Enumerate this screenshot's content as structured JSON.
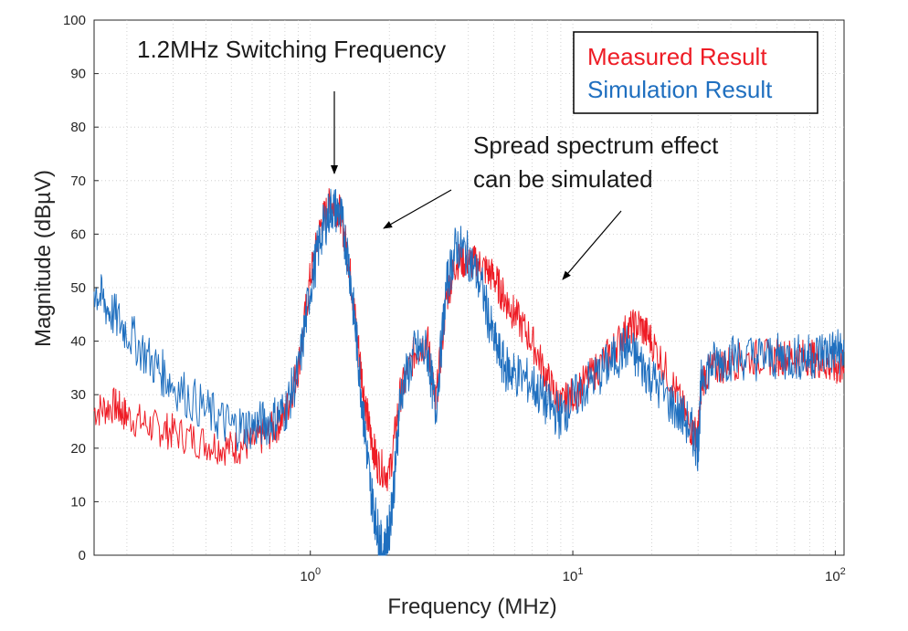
{
  "chart_data": {
    "type": "line",
    "title": "",
    "xlabel": "Frequency (MHz)",
    "ylabel": "Magnitude (dBµV)",
    "xscale": "log",
    "xlim": [
      0.15,
      108
    ],
    "ylim": [
      0,
      100
    ],
    "yticks": [
      0,
      10,
      20,
      30,
      40,
      50,
      60,
      70,
      80,
      90,
      100
    ],
    "xticks": [
      {
        "value": 1,
        "base": "10",
        "exp": "0"
      },
      {
        "value": 10,
        "base": "10",
        "exp": "1"
      },
      {
        "value": 100,
        "base": "10",
        "exp": "2"
      }
    ],
    "grid": true,
    "legend_position": "top-right",
    "series": [
      {
        "name": "Measured Result",
        "color": "#ee1c25",
        "x": [
          0.15,
          0.18,
          0.2,
          0.25,
          0.3,
          0.4,
          0.5,
          0.6,
          0.7,
          0.8,
          0.9,
          1.0,
          1.1,
          1.2,
          1.3,
          1.4,
          1.5,
          1.6,
          1.7,
          1.8,
          2.0,
          2.2,
          2.5,
          2.8,
          3.0,
          3.3,
          3.6,
          4.0,
          4.5,
          5.0,
          5.5,
          6.0,
          7.0,
          8.0,
          9.0,
          10,
          12,
          14,
          16,
          18,
          20,
          24,
          28,
          30,
          31,
          35,
          40,
          50,
          60,
          70,
          80,
          90,
          100,
          108
        ],
        "y": [
          27,
          28,
          26,
          24,
          23,
          21,
          20,
          21,
          23,
          26,
          35,
          52,
          62,
          66,
          64,
          55,
          42,
          30,
          22,
          17,
          15,
          30,
          38,
          40,
          28,
          48,
          55,
          55,
          54,
          52,
          48,
          45,
          40,
          33,
          28,
          30,
          34,
          38,
          42,
          43,
          40,
          32,
          24,
          22,
          33,
          35,
          36,
          37,
          37,
          37,
          37,
          36,
          35,
          35
        ]
      },
      {
        "name": "Simulation Result",
        "color": "#1f6fbf",
        "x": [
          0.15,
          0.17,
          0.2,
          0.25,
          0.3,
          0.4,
          0.5,
          0.6,
          0.7,
          0.8,
          0.9,
          1.0,
          1.1,
          1.2,
          1.3,
          1.4,
          1.5,
          1.6,
          1.7,
          1.8,
          1.9,
          2.0,
          2.1,
          2.2,
          2.5,
          2.8,
          3.0,
          3.3,
          3.6,
          4.0,
          4.5,
          5.0,
          5.5,
          6.0,
          7.0,
          8.0,
          9.0,
          10,
          12,
          14,
          16,
          18,
          20,
          24,
          28,
          30,
          31,
          35,
          40,
          50,
          60,
          70,
          80,
          90,
          100,
          108
        ],
        "y": [
          50,
          46,
          42,
          36,
          32,
          27,
          24,
          24,
          25,
          27,
          34,
          50,
          60,
          65,
          64,
          55,
          40,
          25,
          12,
          5,
          0,
          5,
          15,
          30,
          38,
          38,
          27,
          50,
          58,
          56,
          50,
          40,
          35,
          34,
          32,
          28,
          26,
          29,
          33,
          36,
          39,
          36,
          33,
          28,
          24,
          20,
          34,
          36,
          37,
          37,
          37,
          37,
          37,
          38,
          38,
          38
        ]
      }
    ],
    "annotations": [
      {
        "text": "1.2MHz Switching Frequency"
      },
      {
        "text_lines": [
          "Spread spectrum effect",
          "can be simulated"
        ]
      }
    ]
  },
  "icons": {
    "arrow": "arrow-icon"
  }
}
